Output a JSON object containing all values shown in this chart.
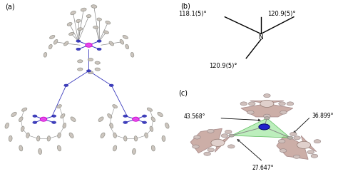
{
  "figure_width": 4.74,
  "figure_height": 2.44,
  "dpi": 100,
  "background_color": "#ffffff",
  "panel_a_label": "(a)",
  "panel_b_label": "(b)",
  "panel_c_label": "(c)",
  "panel_b_angles": {
    "top_left": "118.1(5)°",
    "top_right": "120.9(5)°",
    "bottom": "120.9(5)°",
    "center_atom": "N"
  },
  "panel_c_angles": {
    "left": "43.568°",
    "right": "36.899°",
    "bottom": "27.647°"
  },
  "ellipsoid_fc": "#c8c0b8",
  "ellipsoid_ec": "#888880",
  "blue_fc": "#3333bb",
  "blue_ec": "#2222aa",
  "pink_fc": "#ee44ee",
  "pink_ec": "#cc00cc",
  "bond_color": "#888888",
  "panel_c_green": "#a0e8a0",
  "panel_c_green_edge": "#20a020",
  "panel_c_pink": "#c4a098",
  "panel_c_pink_edge": "#a08080",
  "panel_c_blue": "#2222cc",
  "panel_c_node": "#b8b0a8",
  "font_size_label": 7,
  "font_size_angle_b": 6,
  "font_size_angle_c": 5.5,
  "font_size_atom": 6
}
